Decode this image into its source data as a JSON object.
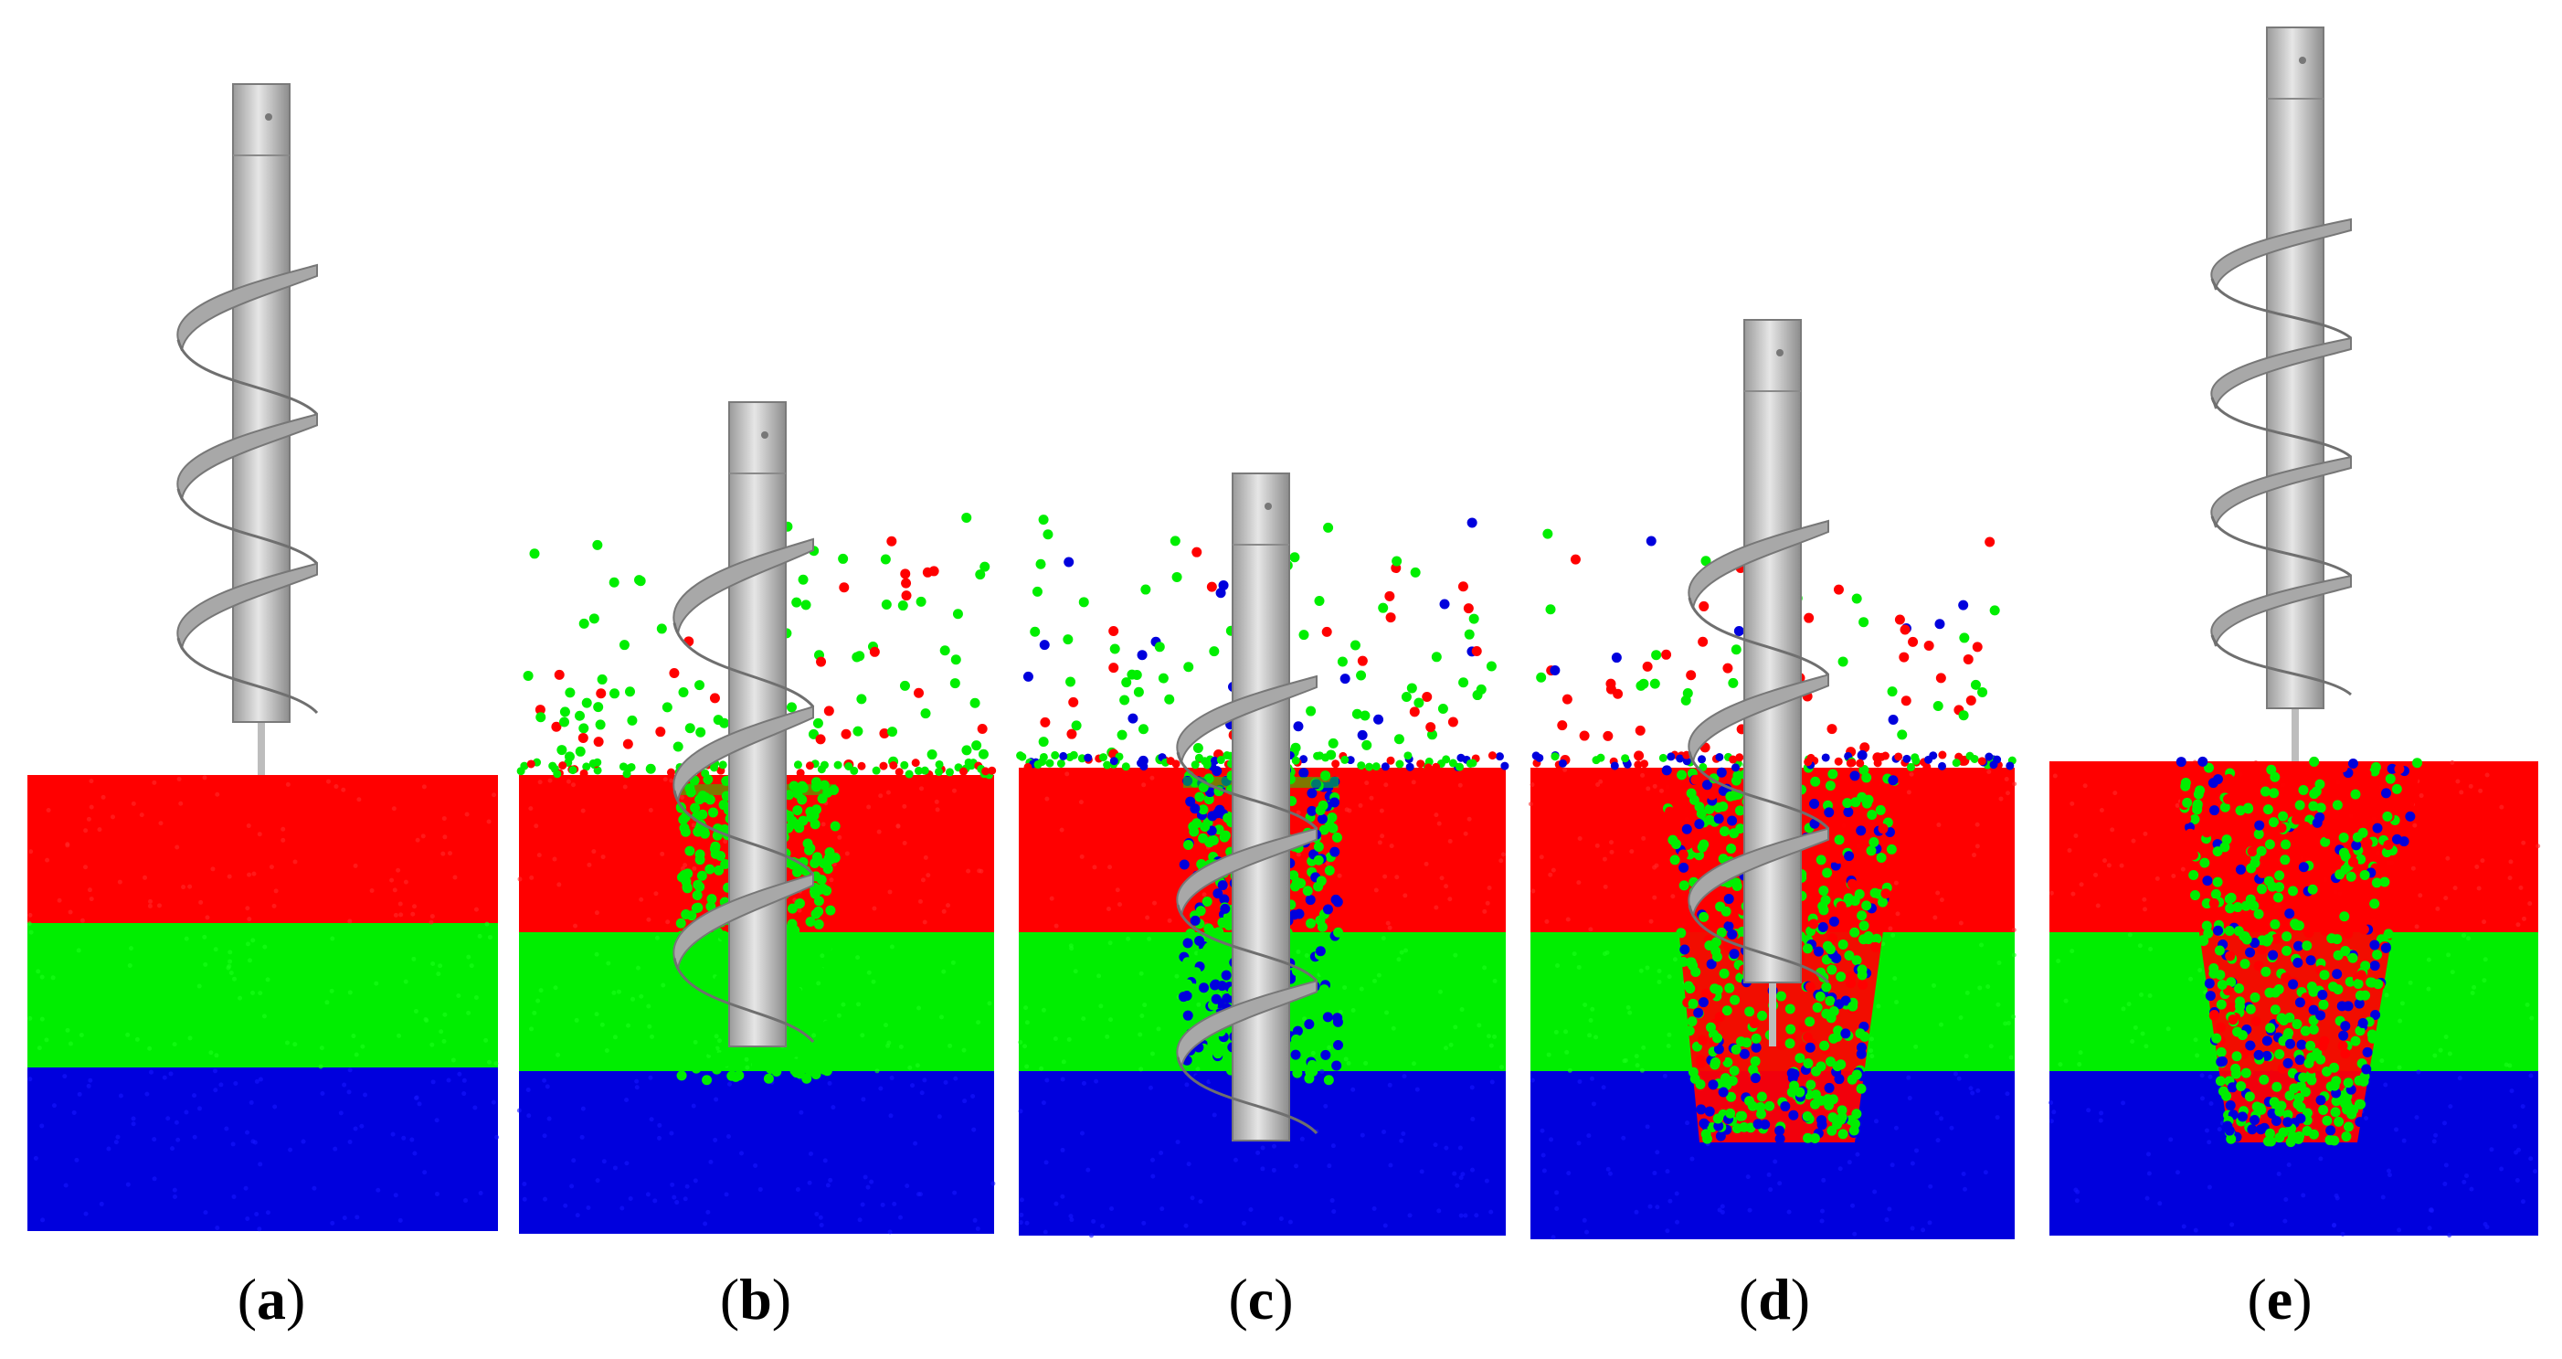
{
  "figure": {
    "colors": {
      "top_layer": "#ff0000",
      "middle_layer": "#00ee00",
      "bottom_layer": "#0000dd",
      "auger": "#c8c8c8",
      "auger_shade": "#8a8a8a"
    },
    "panels": [
      {
        "id": "a",
        "label": "a",
        "stage": "auger above the bed"
      },
      {
        "id": "b",
        "label": "b",
        "stage": "auger in red and green layers"
      },
      {
        "id": "c",
        "label": "c",
        "stage": "auger reaching blue layer"
      },
      {
        "id": "d",
        "label": "d",
        "stage": "auger withdrawing"
      },
      {
        "id": "e",
        "label": "e",
        "stage": "auger withdrawn"
      }
    ]
  }
}
